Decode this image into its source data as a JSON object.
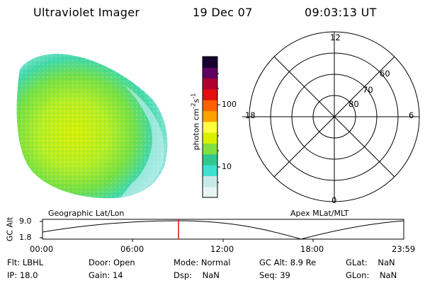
{
  "header": {
    "instrument": "Ultraviolet Imager",
    "date": "19 Dec 07",
    "time": "09:03:13 UT"
  },
  "colorbar": {
    "axis_label": "photon cm",
    "exp1": "-2",
    "mid": "s",
    "exp2": "-1",
    "tick_high": "100",
    "tick_low": "10",
    "color_stops": [
      "#e8f4f4",
      "#c8e8e8",
      "#40e0d0",
      "#30c890",
      "#80e040",
      "#d8f000",
      "#ffff40",
      "#ffa000",
      "#ff6000",
      "#e01010",
      "#b00030",
      "#600060",
      "#180030"
    ]
  },
  "polar_plot": {
    "labels": {
      "top": "12",
      "left": "18",
      "right": "6",
      "bottom": "0",
      "lat60": "60",
      "lat70": "70",
      "lat80": "80"
    }
  },
  "image_labels": {
    "left": "Geographic Lat/Lon",
    "right": "Apex MLat/MLT"
  },
  "orbit_plot": {
    "ylabel": "GC Alt",
    "ytick_high": "9.0",
    "ytick_low": "1.8",
    "xticks": [
      "00:00",
      "06:00",
      "12:00",
      "18:00",
      "23:59"
    ],
    "marker_time": "09:03"
  },
  "status": {
    "flt_label": "Flt:",
    "flt_value": "LBHL",
    "door_label": "Door:",
    "door_value": "Open",
    "mode_label": "Mode:",
    "mode_value": "Normal",
    "gcalt_label": "GC Alt:",
    "gcalt_value": "8.9 Re",
    "glat_label": "GLat:",
    "glat_value": "NaN",
    "ip_label": "IP:",
    "ip_value": "18.0",
    "gain_label": "Gain:",
    "gain_value": "14",
    "dsp_label": "Dsp:",
    "dsp_value": "NaN",
    "seq_label": "Seq:",
    "seq_value": "39",
    "glon_label": "GLon:",
    "glon_value": "NaN"
  }
}
